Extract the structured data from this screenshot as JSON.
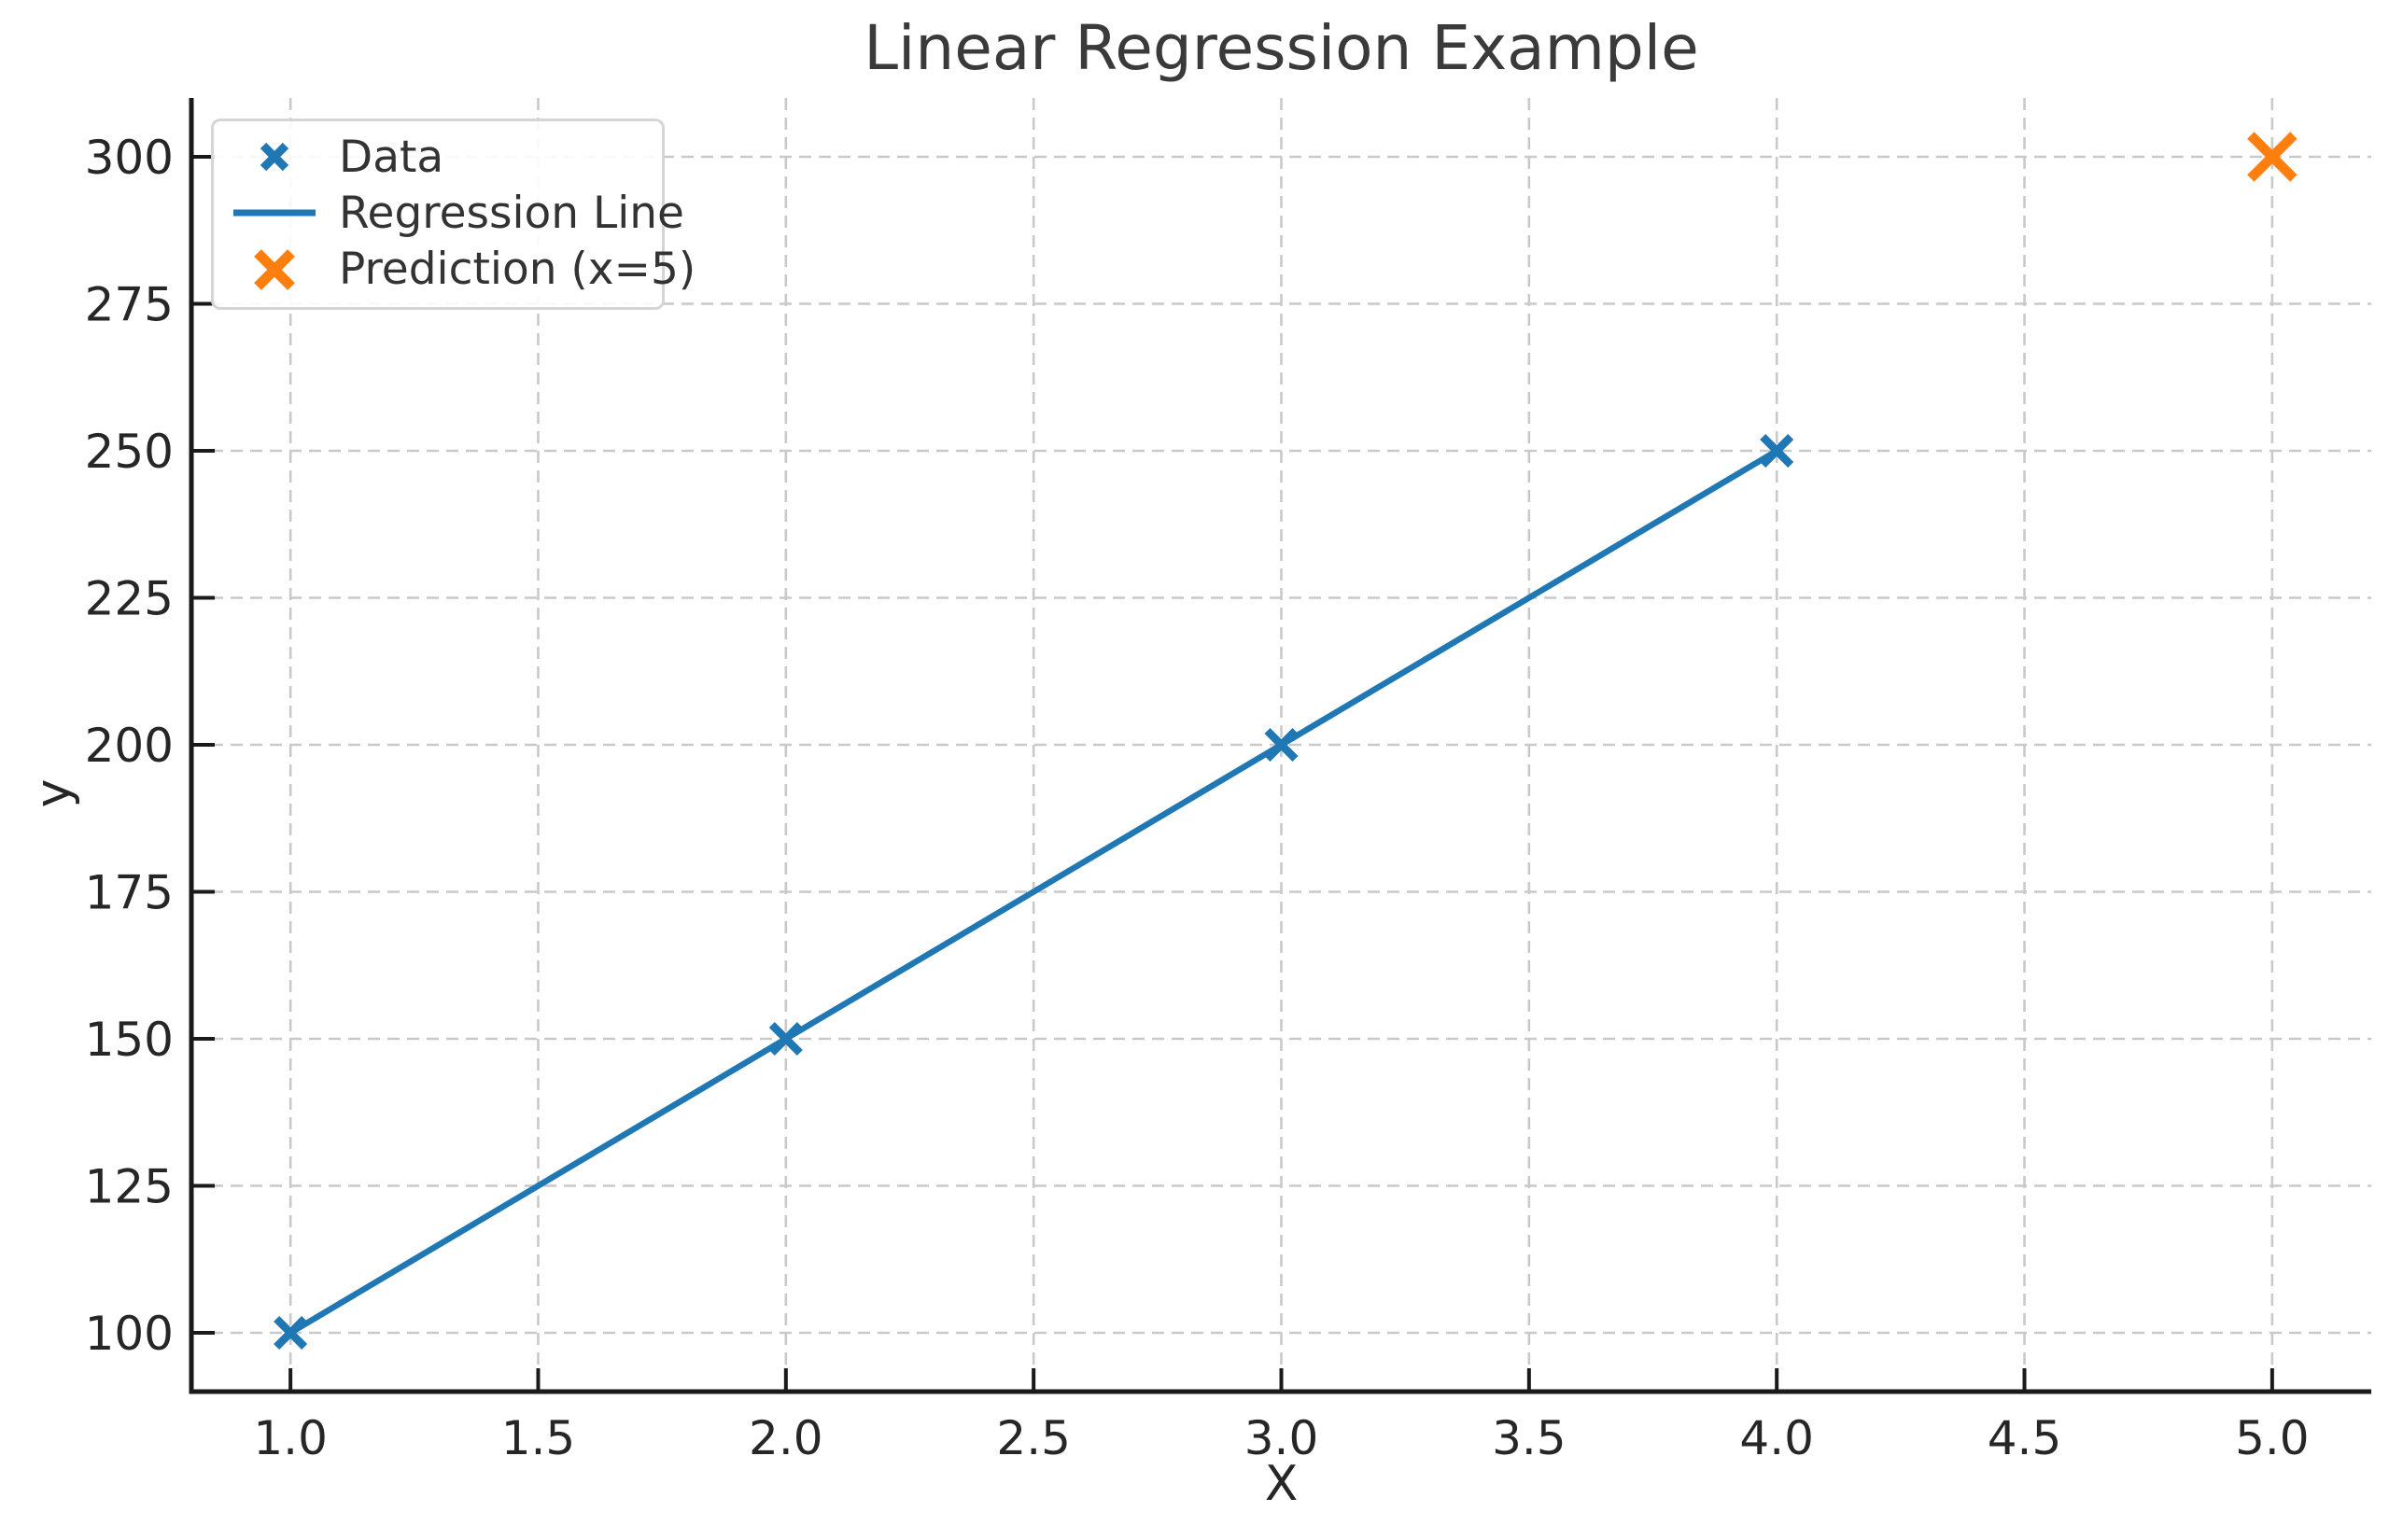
{
  "figure": {
    "background": "#ffffff"
  },
  "chart_data": {
    "type": "scatter",
    "title": "Linear Regression Example",
    "xlabel": "X",
    "ylabel": "y",
    "xlim": [
      0.8,
      5.2
    ],
    "ylim": [
      90,
      310
    ],
    "xticks": [
      1.0,
      1.5,
      2.0,
      2.5,
      3.0,
      3.5,
      4.0,
      4.5,
      5.0
    ],
    "xtick_labels": [
      "1.0",
      "1.5",
      "2.0",
      "2.5",
      "3.0",
      "3.5",
      "4.0",
      "4.5",
      "5.0"
    ],
    "yticks": [
      100,
      125,
      150,
      175,
      200,
      225,
      250,
      275,
      300
    ],
    "ytick_labels": [
      "100",
      "125",
      "150",
      "175",
      "200",
      "225",
      "250",
      "275",
      "300"
    ],
    "grid": true,
    "grid_style": "dashed",
    "legend_position": "upper left",
    "series": [
      {
        "name": "Data",
        "type": "scatter",
        "marker": "x",
        "color": "#1f77b4",
        "x": [
          1,
          2,
          3,
          4
        ],
        "y": [
          100,
          150,
          200,
          250
        ]
      },
      {
        "name": "Regression Line",
        "type": "line",
        "color": "#1f77b4",
        "x": [
          1,
          4
        ],
        "y": [
          100,
          250
        ]
      },
      {
        "name": "Prediction (x=5)",
        "type": "scatter",
        "marker": "X",
        "color": "#ff7f0e",
        "x": [
          5
        ],
        "y": [
          300
        ]
      }
    ],
    "legend": [
      {
        "label": "Data",
        "icon": "blue-x-marker-icon"
      },
      {
        "label": "Regression Line",
        "icon": "blue-line-icon"
      },
      {
        "label": "Prediction (x=5)",
        "icon": "orange-x-marker-icon"
      }
    ],
    "colors": {
      "data": "#1f77b4",
      "regression": "#1f77b4",
      "prediction": "#ff7f0e",
      "grid": "#c9c9c9",
      "spine": "#1a1a1a",
      "text": "#262626",
      "title": "#3a3a3a",
      "legend_border": "#d5d5d5"
    }
  }
}
